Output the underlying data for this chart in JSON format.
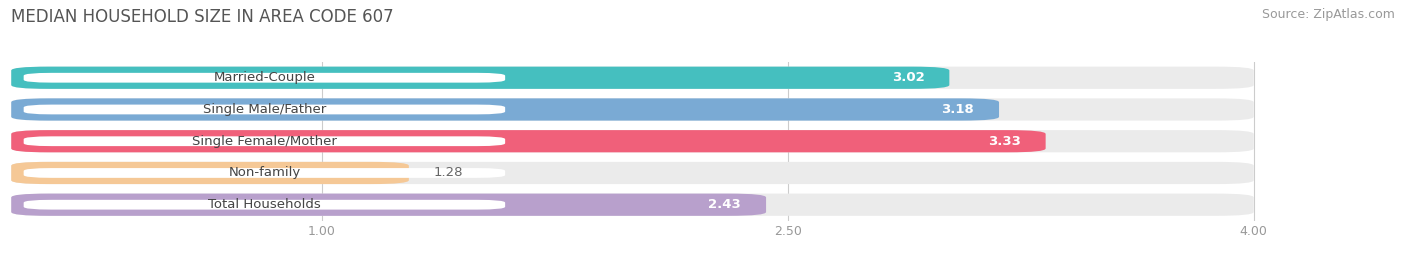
{
  "title": "MEDIAN HOUSEHOLD SIZE IN AREA CODE 607",
  "source": "Source: ZipAtlas.com",
  "categories": [
    "Married-Couple",
    "Single Male/Father",
    "Single Female/Mother",
    "Non-family",
    "Total Households"
  ],
  "values": [
    3.02,
    3.18,
    3.33,
    1.28,
    2.43
  ],
  "bar_colors": [
    "#45BFBF",
    "#7AAAD4",
    "#F0607A",
    "#F5C896",
    "#B8A0CC"
  ],
  "xlim": [
    0,
    4.3
  ],
  "xmin": 0,
  "xmax": 4.0,
  "xticks": [
    1.0,
    2.5,
    4.0
  ],
  "value_inside_threshold": 1.8,
  "title_fontsize": 12,
  "source_fontsize": 9,
  "label_fontsize": 9.5,
  "value_fontsize": 9.5,
  "tick_fontsize": 9,
  "category_fontsize": 9.5,
  "bar_height": 0.7,
  "bar_gap": 0.3
}
